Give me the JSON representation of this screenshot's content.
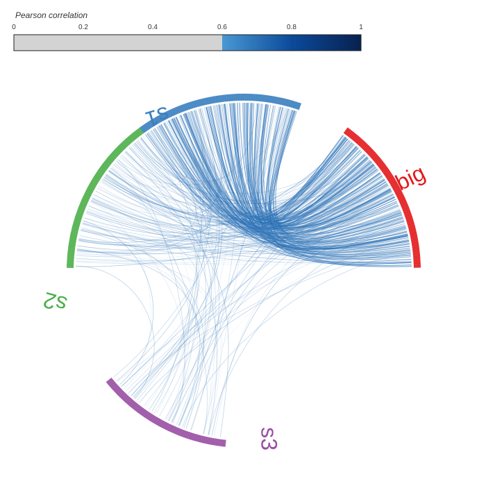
{
  "legend": {
    "title": "Pearson correlation",
    "ticks": [
      "0",
      "0.2",
      "0.4",
      "0.6",
      "0.8",
      "1"
    ],
    "tick_values": [
      0,
      0.2,
      0.4,
      0.6,
      0.8,
      1
    ],
    "threshold": 0.6,
    "below_threshold_color": "#d3d3d3",
    "gradient_colors": [
      "#4a98d3",
      "#0b4a9a",
      "#08214f"
    ]
  },
  "groups": [
    {
      "id": "big",
      "label": "big",
      "color": "#e31a1c",
      "label_orientation": "upright"
    },
    {
      "id": "s1",
      "label": "s1",
      "color": "#3a7fbf",
      "label_orientation": "flipped"
    },
    {
      "id": "s2",
      "label": "s2",
      "color": "#4daf4a",
      "label_orientation": "flipped"
    },
    {
      "id": "s3",
      "label": "s3",
      "color": "#984ea3",
      "label_orientation": "flipped"
    }
  ],
  "link_color": "#2f74b8",
  "links_summary": [
    {
      "from": "s1",
      "to": "big",
      "density": "high"
    },
    {
      "from": "s2",
      "to": "big",
      "density": "medium"
    },
    {
      "from": "s2",
      "to": "s1",
      "density": "low"
    },
    {
      "from": "s3",
      "to": "big",
      "density": "low"
    },
    {
      "from": "s3",
      "to": "s1",
      "density": "low"
    },
    {
      "from": "s3",
      "to": "s2",
      "density": "low"
    }
  ]
}
